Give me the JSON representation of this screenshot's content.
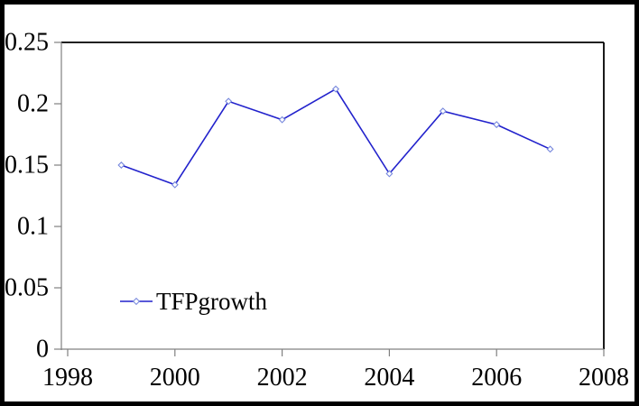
{
  "chart_data": {
    "type": "line",
    "title": "",
    "xlabel": "",
    "ylabel": "",
    "x": [
      1999,
      2000,
      2001,
      2002,
      2003,
      2004,
      2005,
      2006,
      2007
    ],
    "series": [
      {
        "name": "TFPgrowth",
        "values": [
          0.15,
          0.134,
          0.202,
          0.187,
          0.212,
          0.143,
          0.194,
          0.183,
          0.163
        ],
        "color": "#2222cc",
        "marker": "diamond",
        "marker_stroke": "#7788dd",
        "marker_fill": "#ffffff"
      }
    ],
    "xlim": [
      1998,
      2008
    ],
    "ylim": [
      0,
      0.25
    ],
    "xticks": {
      "values": [
        1998,
        2000,
        2002,
        2004,
        2006,
        2008
      ],
      "labels": [
        "1998",
        "2000",
        "2002",
        "2004",
        "2006",
        "2008"
      ]
    },
    "yticks": {
      "values": [
        0,
        0.05,
        0.1,
        0.15,
        0.2,
        0.25
      ],
      "labels": [
        "0",
        "0.05",
        "0.1",
        "0.15",
        "0.2",
        "0.25"
      ]
    },
    "grid": false,
    "legend": {
      "visible": true,
      "position": "inside-bottom-left",
      "entries": [
        "TFPgrowth"
      ]
    },
    "axis_color": "#808080",
    "plot_border_color": "#000000",
    "frame_border_color": "#000000",
    "background_color": "#ffffff"
  }
}
